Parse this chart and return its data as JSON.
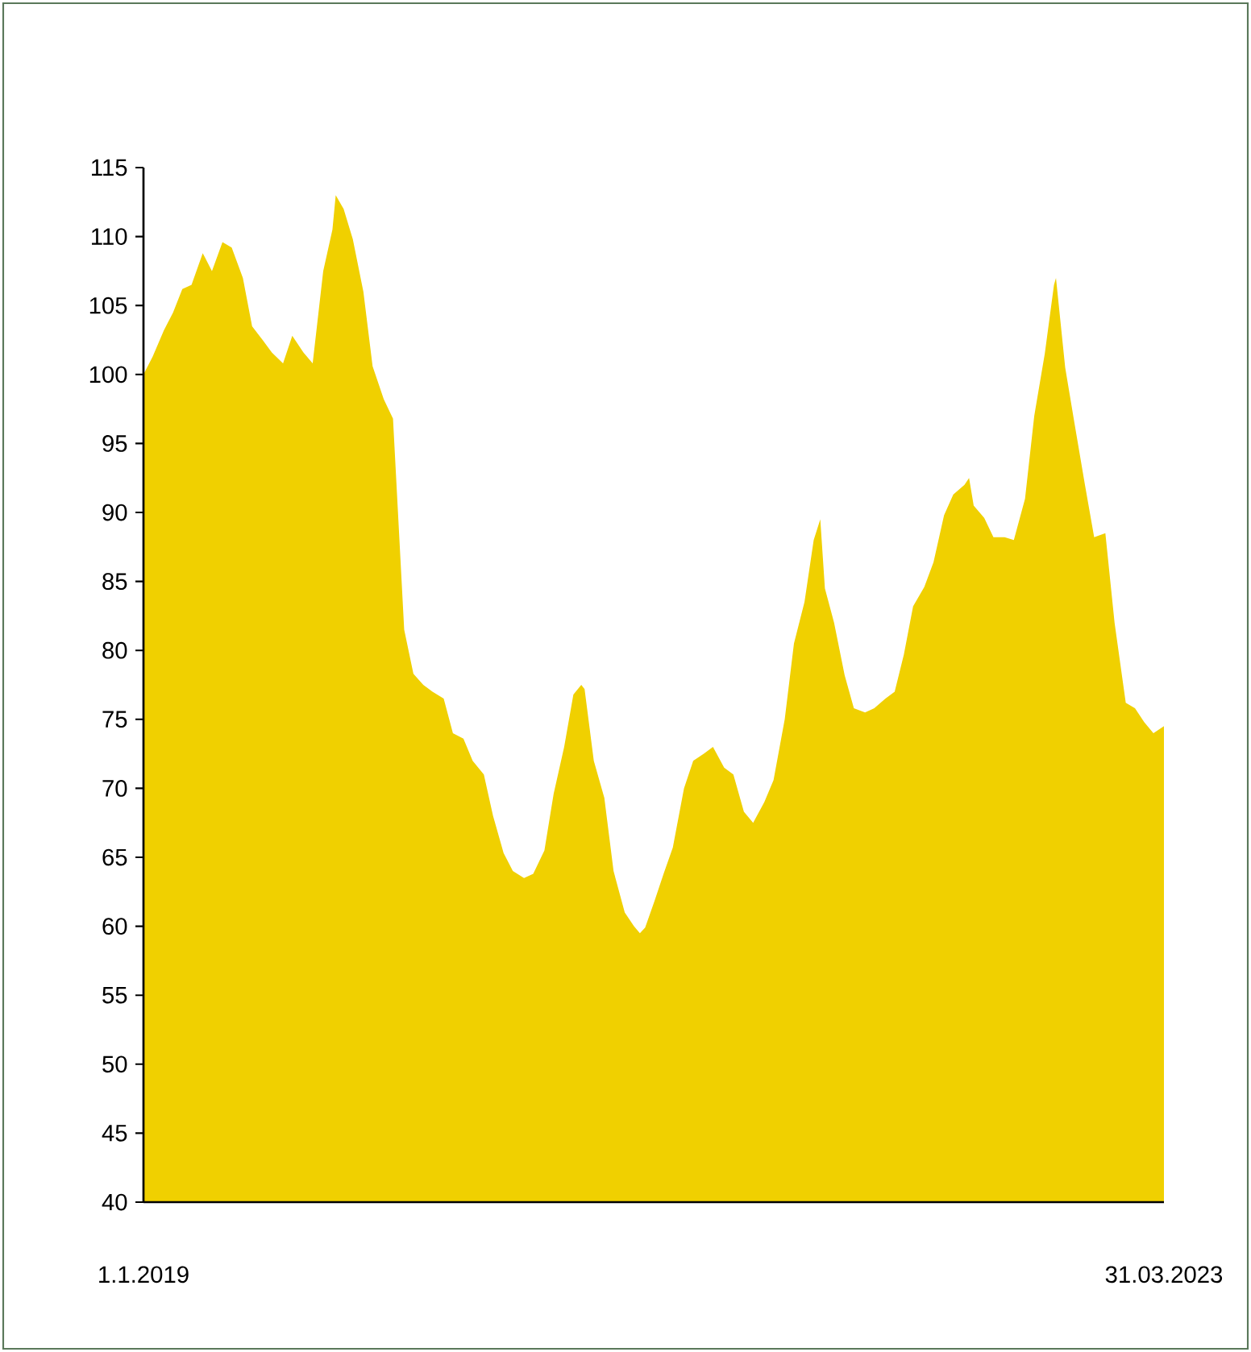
{
  "chart_data": {
    "type": "area",
    "x": [
      "2019-01-01",
      "2019-01-15",
      "2019-02-01",
      "2019-02-15",
      "2019-03-01",
      "2019-03-15",
      "2019-04-01",
      "2019-04-15",
      "2019-05-01",
      "2019-05-15",
      "2019-06-01",
      "2019-06-15",
      "2019-07-01",
      "2019-07-15",
      "2019-08-01",
      "2019-08-15",
      "2019-09-01",
      "2019-09-15",
      "2019-10-01",
      "2019-10-15",
      "2019-10-20",
      "2019-11-01",
      "2019-11-15",
      "2019-12-01",
      "2019-12-15",
      "2020-01-01",
      "2020-01-15",
      "2020-02-01",
      "2020-02-15",
      "2020-03-01",
      "2020-03-15",
      "2020-04-01",
      "2020-04-15",
      "2020-05-01",
      "2020-05-15",
      "2020-06-01",
      "2020-06-15",
      "2020-07-01",
      "2020-07-15",
      "2020-08-01",
      "2020-08-15",
      "2020-09-01",
      "2020-09-15",
      "2020-10-01",
      "2020-10-15",
      "2020-10-27",
      "2020-11-01",
      "2020-11-15",
      "2020-12-01",
      "2020-12-15",
      "2021-01-01",
      "2021-01-15",
      "2021-01-24",
      "2021-02-01",
      "2021-02-15",
      "2021-03-01",
      "2021-03-15",
      "2021-04-01",
      "2021-04-15",
      "2021-05-01",
      "2021-05-15",
      "2021-06-01",
      "2021-06-15",
      "2021-07-01",
      "2021-07-15",
      "2021-08-01",
      "2021-08-15",
      "2021-09-01",
      "2021-09-15",
      "2021-10-01",
      "2021-10-15",
      "2021-10-25",
      "2021-11-01",
      "2021-11-15",
      "2021-12-01",
      "2021-12-15",
      "2022-01-01",
      "2022-01-15",
      "2022-02-01",
      "2022-02-15",
      "2022-03-01",
      "2022-03-15",
      "2022-04-01",
      "2022-04-15",
      "2022-05-01",
      "2022-05-15",
      "2022-06-01",
      "2022-06-08",
      "2022-06-15",
      "2022-07-01",
      "2022-07-15",
      "2022-08-01",
      "2022-08-15",
      "2022-09-01",
      "2022-09-15",
      "2022-10-01",
      "2022-10-15",
      "2022-10-18",
      "2022-11-01",
      "2022-11-15",
      "2022-12-01",
      "2022-12-15",
      "2023-01-01",
      "2023-01-15",
      "2023-02-01",
      "2023-02-15",
      "2023-03-01",
      "2023-03-15",
      "2023-03-31"
    ],
    "series": [
      {
        "color": "#f0d000",
        "values": [
          100,
          101.3,
          103.2,
          104.5,
          106.2,
          106.5,
          108.8,
          107.5,
          109.6,
          109.2,
          107,
          103.5,
          102.5,
          101.6,
          100.8,
          102.8,
          101.6,
          100.8,
          107.5,
          110.5,
          113,
          112,
          109.8,
          106,
          100.6,
          98.2,
          96.8,
          81.5,
          78.3,
          77.5,
          77,
          76.5,
          74,
          73.6,
          72,
          71,
          68,
          65.3,
          64,
          63.5,
          63.8,
          65.5,
          69.6,
          73,
          76.8,
          77.5,
          77.2,
          72,
          69.3,
          64,
          61,
          60,
          59.5,
          59.9,
          61.8,
          63.8,
          65.7,
          70,
          72,
          72.5,
          73,
          71.5,
          71,
          68.3,
          67.5,
          69,
          70.6,
          75,
          80.5,
          83.5,
          88,
          89.5,
          84.5,
          82,
          78.2,
          75.8,
          75.5,
          75.8,
          76.5,
          77,
          79.7,
          83.2,
          84.6,
          86.4,
          89.8,
          91.3,
          92,
          92.5,
          90.5,
          89.6,
          88.2,
          88.2,
          88,
          91,
          97,
          101.5,
          106.5,
          107,
          100.5,
          96.5,
          92,
          88.2,
          88.5,
          82,
          76.2,
          75.8,
          74.8,
          74,
          74.5
        ]
      }
    ],
    "xlim": [
      "2019-01-01",
      "2023-03-31"
    ],
    "xticks": [
      {
        "value": "2019-01-01",
        "label": "1.1.2019"
      },
      {
        "value": "2023-03-31",
        "label": "31.03.2023"
      }
    ],
    "ylim": [
      40,
      115
    ],
    "yticks": [
      40,
      45,
      50,
      55,
      60,
      65,
      70,
      75,
      80,
      85,
      90,
      95,
      100,
      105,
      110,
      115
    ]
  }
}
